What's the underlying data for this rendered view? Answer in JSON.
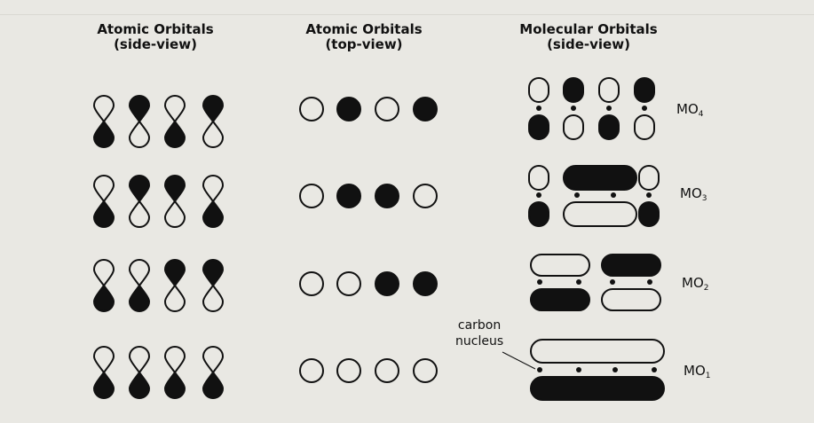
{
  "headers": [
    {
      "line1": "Atomic Orbitals",
      "line2": "(side-view)"
    },
    {
      "line1": "Atomic Orbitals",
      "line2": "(top-view)"
    },
    {
      "line1": "Molecular Orbitals",
      "line2": "(side-view)"
    }
  ],
  "rows": [
    {
      "label_base": "MO",
      "label_sub": "4",
      "side_top_filled": [
        false,
        true,
        false,
        true
      ],
      "top_view_filled": [
        false,
        true,
        false,
        true
      ]
    },
    {
      "label_base": "MO",
      "label_sub": "3",
      "side_top_filled": [
        false,
        true,
        true,
        false
      ],
      "top_view_filled": [
        false,
        true,
        true,
        false
      ]
    },
    {
      "label_base": "MO",
      "label_sub": "2",
      "side_top_filled": [
        false,
        false,
        true,
        true
      ],
      "top_view_filled": [
        false,
        false,
        true,
        true
      ]
    },
    {
      "label_base": "MO",
      "label_sub": "1",
      "side_top_filled": [
        false,
        false,
        false,
        false
      ],
      "top_view_filled": [
        false,
        false,
        false,
        false
      ]
    }
  ],
  "annotation": {
    "line1": "carbon",
    "line2": "nucleus"
  },
  "colors": {
    "background": "#e9e8e3",
    "ink": "#111111"
  }
}
